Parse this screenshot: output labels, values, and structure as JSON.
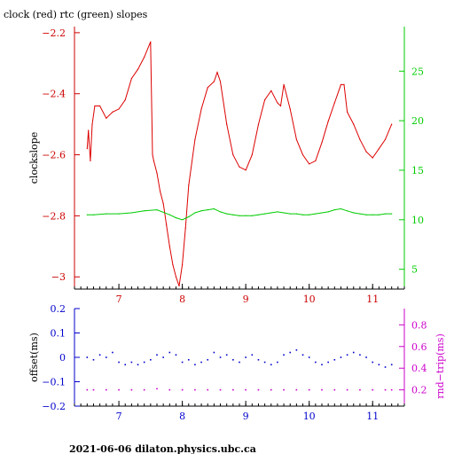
{
  "title": "clock (red) rtc (green) slopes",
  "footer": "2021-06-06  dilaton.physics.ubc.ca",
  "colors": {
    "frame": "#000000",
    "clock": "#dd0000",
    "rtc": "#00cc00",
    "offset": "#0000cc",
    "roundtrip": "#cc00cc"
  },
  "chart_data": [
    {
      "type": "line",
      "title": "clock (red) rtc (green) slopes",
      "ylabel": "clockslope",
      "xlim": [
        6.3,
        11.5
      ],
      "ylim": [
        -3.04,
        -2.18
      ],
      "y2lim": [
        3,
        29.5
      ],
      "xticks": [
        7,
        8,
        9,
        10,
        11
      ],
      "yticks": [
        -2.2,
        -2.4,
        -2.6,
        -2.8,
        -3
      ],
      "ytick_labels": [
        "−2.2",
        "−2.4",
        "−2.6",
        "−2.8",
        "−3"
      ],
      "y2ticks": [
        5,
        10,
        15,
        20,
        25
      ],
      "grid": false,
      "series": [
        {
          "color": "red",
          "axis": "left",
          "x": [
            6.5,
            6.52,
            6.55,
            6.58,
            6.62,
            6.7,
            6.8,
            6.9,
            7.0,
            7.1,
            7.2,
            7.3,
            7.4,
            7.5,
            7.53,
            7.55,
            7.6,
            7.65,
            7.7,
            7.75,
            7.8,
            7.85,
            7.9,
            7.95,
            8.0,
            8.05,
            8.1,
            8.2,
            8.3,
            8.4,
            8.5,
            8.55,
            8.6,
            8.7,
            8.8,
            8.9,
            9.0,
            9.1,
            9.2,
            9.3,
            9.4,
            9.5,
            9.55,
            9.6,
            9.7,
            9.8,
            9.9,
            10.0,
            10.1,
            10.2,
            10.3,
            10.4,
            10.5,
            10.55,
            10.6,
            10.7,
            10.8,
            10.9,
            11.0,
            11.1,
            11.2,
            11.3
          ],
          "y": [
            -2.58,
            -2.52,
            -2.62,
            -2.5,
            -2.44,
            -2.44,
            -2.48,
            -2.46,
            -2.45,
            -2.42,
            -2.35,
            -2.32,
            -2.28,
            -2.23,
            -2.6,
            -2.62,
            -2.66,
            -2.72,
            -2.76,
            -2.83,
            -2.9,
            -2.96,
            -3.0,
            -3.03,
            -2.96,
            -2.84,
            -2.7,
            -2.55,
            -2.45,
            -2.38,
            -2.36,
            -2.33,
            -2.36,
            -2.5,
            -2.6,
            -2.64,
            -2.65,
            -2.6,
            -2.5,
            -2.42,
            -2.39,
            -2.43,
            -2.44,
            -2.37,
            -2.45,
            -2.55,
            -2.6,
            -2.63,
            -2.62,
            -2.56,
            -2.49,
            -2.43,
            -2.37,
            -2.37,
            -2.46,
            -2.5,
            -2.55,
            -2.59,
            -2.61,
            -2.58,
            -2.55,
            -2.5
          ]
        },
        {
          "color": "green",
          "axis": "right",
          "x": [
            6.5,
            6.6,
            6.8,
            7.0,
            7.2,
            7.4,
            7.6,
            7.8,
            7.9,
            8.0,
            8.1,
            8.2,
            8.3,
            8.4,
            8.5,
            8.6,
            8.7,
            8.8,
            8.9,
            9.0,
            9.1,
            9.2,
            9.3,
            9.4,
            9.5,
            9.6,
            9.7,
            9.8,
            9.9,
            10.0,
            10.1,
            10.2,
            10.3,
            10.4,
            10.5,
            10.6,
            10.7,
            10.8,
            10.9,
            11.0,
            11.1,
            11.2,
            11.3
          ],
          "y": [
            10.5,
            10.5,
            10.6,
            10.6,
            10.7,
            10.9,
            11.0,
            10.5,
            10.2,
            10.0,
            10.3,
            10.7,
            10.9,
            11.0,
            11.1,
            10.8,
            10.6,
            10.5,
            10.4,
            10.4,
            10.4,
            10.5,
            10.6,
            10.7,
            10.8,
            10.7,
            10.6,
            10.6,
            10.5,
            10.5,
            10.6,
            10.7,
            10.8,
            11.0,
            11.1,
            10.9,
            10.7,
            10.6,
            10.5,
            10.5,
            10.5,
            10.6,
            10.6
          ]
        }
      ]
    },
    {
      "type": "scatter",
      "ylabel": "offset(ms)",
      "y2label": "rnd−trip(ms)",
      "xlim": [
        6.3,
        11.5
      ],
      "ylim": [
        -0.2,
        0.2
      ],
      "y2lim": [
        0.05,
        0.95
      ],
      "xticks": [
        7,
        8,
        9,
        10,
        11
      ],
      "yticks": [
        0.2,
        0.1,
        0,
        -0.1,
        -0.2
      ],
      "ytick_labels": [
        "0.2",
        "0.1",
        "0",
        "−0.1",
        "−0.2"
      ],
      "y2ticks": [
        0.2,
        0.4,
        0.6,
        0.8
      ],
      "grid": false,
      "series": [
        {
          "color": "blue",
          "axis": "left",
          "x": [
            6.5,
            6.6,
            6.7,
            6.8,
            6.9,
            7.0,
            7.1,
            7.2,
            7.3,
            7.4,
            7.5,
            7.6,
            7.7,
            7.8,
            7.9,
            8.0,
            8.1,
            8.2,
            8.3,
            8.4,
            8.5,
            8.6,
            8.7,
            8.8,
            8.9,
            9.0,
            9.1,
            9.2,
            9.3,
            9.4,
            9.5,
            9.6,
            9.7,
            9.8,
            9.9,
            10.0,
            10.1,
            10.2,
            10.3,
            10.4,
            10.5,
            10.6,
            10.7,
            10.8,
            10.9,
            11.0,
            11.1,
            11.2,
            11.3
          ],
          "y": [
            0.0,
            -0.01,
            0.01,
            0.0,
            0.02,
            -0.02,
            -0.03,
            -0.02,
            -0.03,
            -0.02,
            -0.01,
            0.01,
            0.0,
            0.02,
            0.01,
            -0.02,
            -0.01,
            -0.03,
            -0.02,
            -0.01,
            0.02,
            0.0,
            0.01,
            -0.01,
            -0.02,
            0.0,
            0.01,
            -0.01,
            -0.02,
            -0.03,
            -0.02,
            0.01,
            0.02,
            0.03,
            0.01,
            0.0,
            -0.02,
            -0.03,
            -0.02,
            -0.01,
            0.0,
            0.01,
            0.02,
            0.01,
            0.0,
            -0.02,
            -0.03,
            -0.04,
            -0.03
          ]
        },
        {
          "color": "magenta",
          "axis": "right",
          "x": [
            6.5,
            6.6,
            6.8,
            7.0,
            7.2,
            7.4,
            7.6,
            7.8,
            8.0,
            8.2,
            8.4,
            8.6,
            8.8,
            9.0,
            9.2,
            9.4,
            9.6,
            9.8,
            10.0,
            10.2,
            10.4,
            10.6,
            10.8,
            11.0,
            11.2,
            11.3
          ],
          "y": [
            0.2,
            0.2,
            0.2,
            0.2,
            0.2,
            0.2,
            0.21,
            0.2,
            0.2,
            0.2,
            0.2,
            0.2,
            0.2,
            0.2,
            0.2,
            0.2,
            0.2,
            0.2,
            0.2,
            0.2,
            0.2,
            0.2,
            0.2,
            0.2,
            0.2,
            0.2
          ]
        }
      ]
    }
  ]
}
